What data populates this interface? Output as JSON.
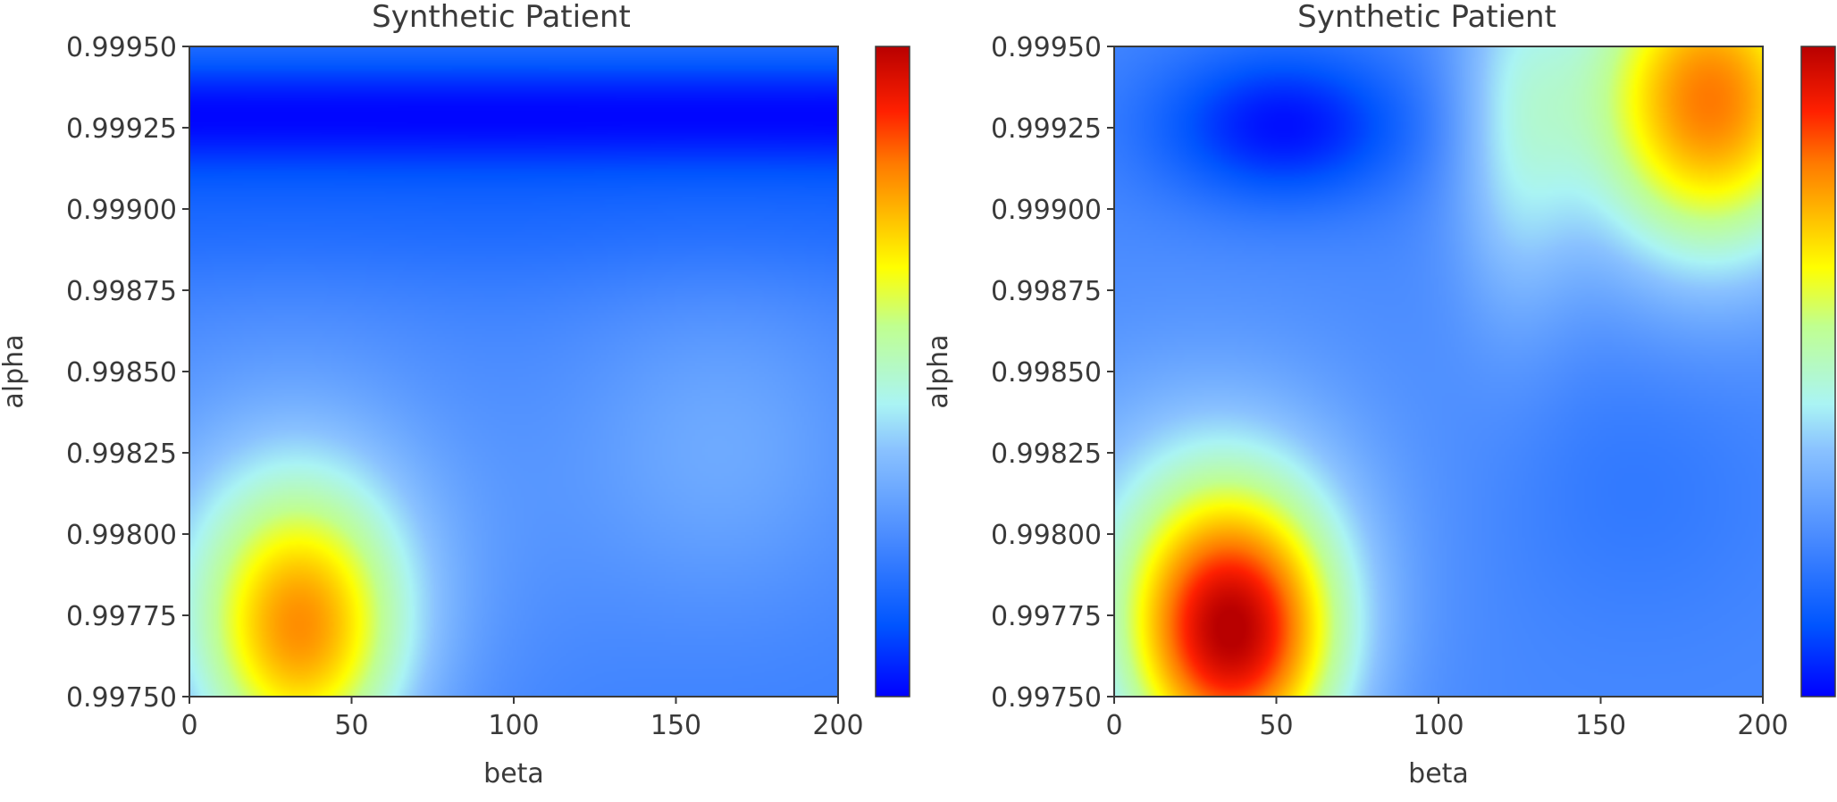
{
  "chart_data": [
    {
      "type": "heatmap",
      "title": "Synthetic Patient",
      "xlabel": "beta",
      "ylabel": "alpha",
      "xlim": [
        0,
        200
      ],
      "ylim": [
        0.9975,
        0.9995
      ],
      "x_ticks": [
        "0",
        "50",
        "100",
        "150",
        "200"
      ],
      "y_ticks": [
        "0.99750",
        "0.99775",
        "0.99800",
        "0.99825",
        "0.99850",
        "0.99875",
        "0.99900",
        "0.99925",
        "0.99950"
      ],
      "colormap": "jet",
      "colorbar": true,
      "grid": false,
      "features": [
        {
          "kind": "peak",
          "beta": 35,
          "alpha": 0.99767,
          "level": 0.66
        },
        {
          "kind": "trough",
          "beta": 100,
          "alpha": 0.99935,
          "level": 0.02
        }
      ]
    },
    {
      "type": "heatmap",
      "title": "Synthetic Patient",
      "xlabel": "beta",
      "ylabel": "alpha",
      "xlim": [
        0,
        200
      ],
      "ylim": [
        0.9975,
        0.9995
      ],
      "x_ticks": [
        "0",
        "50",
        "100",
        "150",
        "200"
      ],
      "y_ticks": [
        "0.99750",
        "0.99775",
        "0.99800",
        "0.99825",
        "0.99850",
        "0.99875",
        "0.99900",
        "0.99925",
        "0.99950"
      ],
      "colormap": "jet",
      "colorbar": true,
      "grid": false,
      "features": [
        {
          "kind": "peak",
          "beta": 37,
          "alpha": 0.99767,
          "level": 0.95
        },
        {
          "kind": "peak",
          "beta": 185,
          "alpha": 0.99935,
          "level": 0.82
        },
        {
          "kind": "trough",
          "beta": 52,
          "alpha": 0.99931,
          "level": 0.02
        }
      ]
    }
  ]
}
